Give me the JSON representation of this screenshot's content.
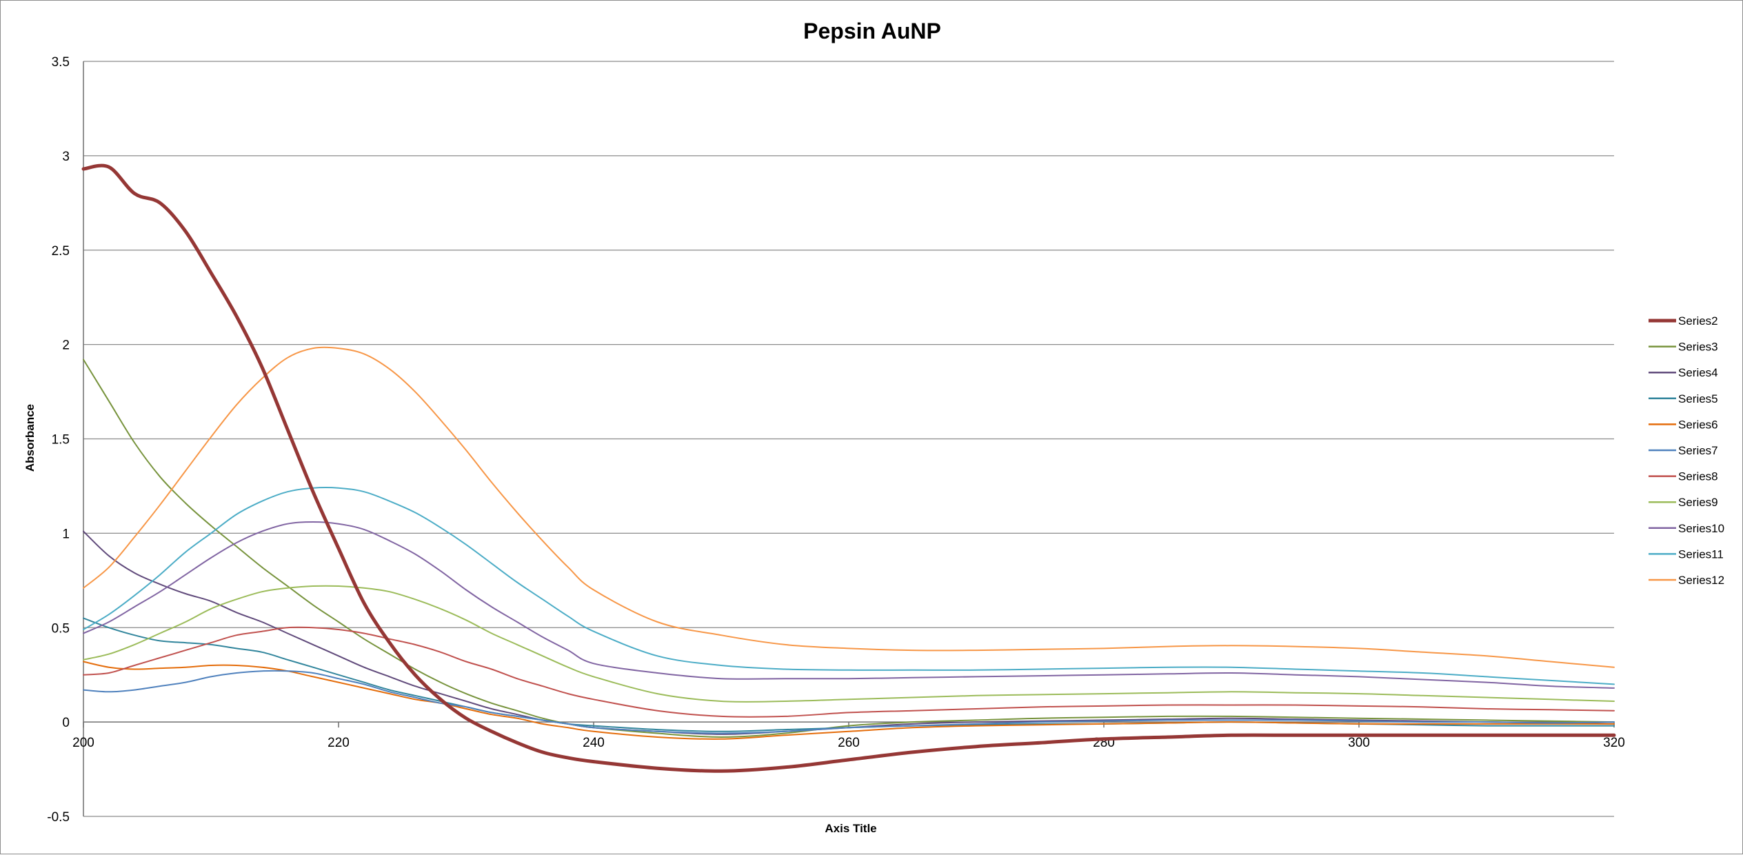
{
  "chart_data": {
    "type": "line",
    "title": "Pepsin AuNP",
    "xlabel": "Axis Title",
    "ylabel": "Absorbance",
    "xlim": [
      200,
      320
    ],
    "ylim": [
      -0.5,
      3.5
    ],
    "xticks": [
      200,
      220,
      240,
      260,
      280,
      300,
      320
    ],
    "yticks": [
      -0.5,
      0,
      0.5,
      1,
      1.5,
      2,
      2.5,
      3,
      3.5
    ],
    "ytick_labels": [
      "-0.5",
      "0",
      "0.5",
      "1",
      "1.5",
      "2",
      "2.5",
      "3",
      "3.5"
    ],
    "grid": "horizontal",
    "legend_position": "right",
    "x": [
      200,
      202,
      204,
      206,
      208,
      210,
      212,
      214,
      216,
      218,
      220,
      222,
      224,
      226,
      228,
      230,
      232,
      234,
      236,
      238,
      240,
      245,
      250,
      255,
      260,
      265,
      270,
      275,
      280,
      285,
      290,
      295,
      300,
      305,
      310,
      315,
      320
    ],
    "series": [
      {
        "name": "Series2",
        "color": "#953735",
        "width": 5,
        "values": [
          2.93,
          2.94,
          2.8,
          2.75,
          2.6,
          2.38,
          2.15,
          1.88,
          1.55,
          1.22,
          0.92,
          0.63,
          0.42,
          0.25,
          0.12,
          0.02,
          -0.05,
          -0.11,
          -0.16,
          -0.19,
          -0.21,
          -0.245,
          -0.26,
          -0.24,
          -0.2,
          -0.16,
          -0.13,
          -0.11,
          -0.09,
          -0.08,
          -0.07,
          -0.07,
          -0.07,
          -0.07,
          -0.07,
          -0.07,
          -0.07
        ]
      },
      {
        "name": "Series3",
        "color": "#77933c",
        "width": 2,
        "values": [
          1.92,
          1.7,
          1.48,
          1.3,
          1.16,
          1.04,
          0.93,
          0.82,
          0.72,
          0.62,
          0.53,
          0.44,
          0.36,
          0.28,
          0.21,
          0.15,
          0.1,
          0.06,
          0.02,
          -0.01,
          -0.03,
          -0.06,
          -0.08,
          -0.06,
          -0.02,
          0.0,
          0.01,
          0.02,
          0.025,
          0.03,
          0.03,
          0.025,
          0.02,
          0.015,
          0.01,
          0.005,
          0.0
        ]
      },
      {
        "name": "Series4",
        "color": "#604a7b",
        "width": 2,
        "values": [
          1.01,
          0.88,
          0.79,
          0.73,
          0.68,
          0.64,
          0.58,
          0.53,
          0.47,
          0.41,
          0.35,
          0.29,
          0.24,
          0.19,
          0.15,
          0.11,
          0.07,
          0.04,
          0.01,
          -0.01,
          -0.03,
          -0.05,
          -0.065,
          -0.05,
          -0.03,
          -0.01,
          0.0,
          0.005,
          0.01,
          0.015,
          0.02,
          0.015,
          0.01,
          0.005,
          0.0,
          -0.005,
          -0.01
        ]
      },
      {
        "name": "Series5",
        "color": "#31859c",
        "width": 2,
        "values": [
          0.55,
          0.5,
          0.46,
          0.43,
          0.42,
          0.41,
          0.39,
          0.37,
          0.33,
          0.29,
          0.25,
          0.21,
          0.17,
          0.14,
          0.11,
          0.08,
          0.05,
          0.03,
          0.01,
          -0.01,
          -0.02,
          -0.04,
          -0.05,
          -0.04,
          -0.03,
          -0.02,
          -0.015,
          -0.01,
          -0.01,
          -0.005,
          0.0,
          -0.005,
          -0.01,
          -0.015,
          -0.02,
          -0.02,
          -0.02
        ]
      },
      {
        "name": "Series6",
        "color": "#e46c0a",
        "width": 2,
        "values": [
          0.32,
          0.29,
          0.28,
          0.285,
          0.29,
          0.3,
          0.3,
          0.29,
          0.27,
          0.24,
          0.21,
          0.18,
          0.15,
          0.12,
          0.1,
          0.07,
          0.04,
          0.02,
          -0.01,
          -0.03,
          -0.05,
          -0.08,
          -0.09,
          -0.07,
          -0.05,
          -0.03,
          -0.02,
          -0.015,
          -0.01,
          -0.005,
          0.0,
          -0.005,
          -0.01,
          -0.01,
          -0.01,
          -0.01,
          -0.01
        ]
      },
      {
        "name": "Series7",
        "color": "#4f81bd",
        "width": 2,
        "values": [
          0.17,
          0.16,
          0.17,
          0.19,
          0.21,
          0.24,
          0.26,
          0.27,
          0.27,
          0.26,
          0.23,
          0.2,
          0.16,
          0.13,
          0.1,
          0.08,
          0.05,
          0.03,
          0.01,
          -0.01,
          -0.03,
          -0.05,
          -0.06,
          -0.05,
          -0.03,
          -0.02,
          -0.01,
          0.0,
          0.005,
          0.01,
          0.01,
          0.01,
          0.005,
          0.0,
          0.0,
          -0.005,
          0.0
        ]
      },
      {
        "name": "Series8",
        "color": "#c0504d",
        "width": 2,
        "values": [
          0.25,
          0.26,
          0.3,
          0.34,
          0.38,
          0.42,
          0.46,
          0.48,
          0.5,
          0.5,
          0.49,
          0.47,
          0.44,
          0.41,
          0.37,
          0.32,
          0.28,
          0.23,
          0.19,
          0.15,
          0.12,
          0.06,
          0.03,
          0.03,
          0.05,
          0.06,
          0.07,
          0.08,
          0.085,
          0.09,
          0.09,
          0.09,
          0.085,
          0.08,
          0.07,
          0.065,
          0.06
        ]
      },
      {
        "name": "Series9",
        "color": "#9bbb59",
        "width": 2,
        "values": [
          0.33,
          0.36,
          0.41,
          0.47,
          0.53,
          0.6,
          0.65,
          0.69,
          0.71,
          0.72,
          0.72,
          0.71,
          0.69,
          0.65,
          0.6,
          0.54,
          0.47,
          0.41,
          0.35,
          0.29,
          0.24,
          0.15,
          0.11,
          0.11,
          0.12,
          0.13,
          0.14,
          0.145,
          0.15,
          0.155,
          0.16,
          0.155,
          0.15,
          0.14,
          0.13,
          0.12,
          0.11
        ]
      },
      {
        "name": "Series10",
        "color": "#8064a2",
        "width": 2,
        "values": [
          0.47,
          0.53,
          0.61,
          0.69,
          0.78,
          0.87,
          0.95,
          1.01,
          1.05,
          1.06,
          1.05,
          1.02,
          0.96,
          0.89,
          0.8,
          0.7,
          0.61,
          0.53,
          0.45,
          0.38,
          0.31,
          0.26,
          0.23,
          0.23,
          0.23,
          0.235,
          0.24,
          0.245,
          0.25,
          0.255,
          0.26,
          0.25,
          0.24,
          0.225,
          0.21,
          0.19,
          0.18
        ]
      },
      {
        "name": "Series11",
        "color": "#4bacc6",
        "width": 2,
        "values": [
          0.49,
          0.57,
          0.67,
          0.78,
          0.9,
          1.0,
          1.1,
          1.17,
          1.22,
          1.24,
          1.24,
          1.22,
          1.17,
          1.11,
          1.03,
          0.94,
          0.84,
          0.74,
          0.65,
          0.56,
          0.48,
          0.35,
          0.3,
          0.28,
          0.275,
          0.275,
          0.275,
          0.28,
          0.285,
          0.29,
          0.29,
          0.28,
          0.27,
          0.26,
          0.24,
          0.22,
          0.2
        ]
      },
      {
        "name": "Series12",
        "color": "#f79646",
        "width": 2,
        "values": [
          0.71,
          0.82,
          0.98,
          1.15,
          1.33,
          1.51,
          1.68,
          1.82,
          1.93,
          1.98,
          1.98,
          1.95,
          1.87,
          1.75,
          1.6,
          1.44,
          1.27,
          1.11,
          0.96,
          0.82,
          0.7,
          0.53,
          0.46,
          0.41,
          0.39,
          0.38,
          0.38,
          0.385,
          0.39,
          0.4,
          0.405,
          0.4,
          0.39,
          0.37,
          0.35,
          0.32,
          0.29
        ]
      }
    ]
  }
}
